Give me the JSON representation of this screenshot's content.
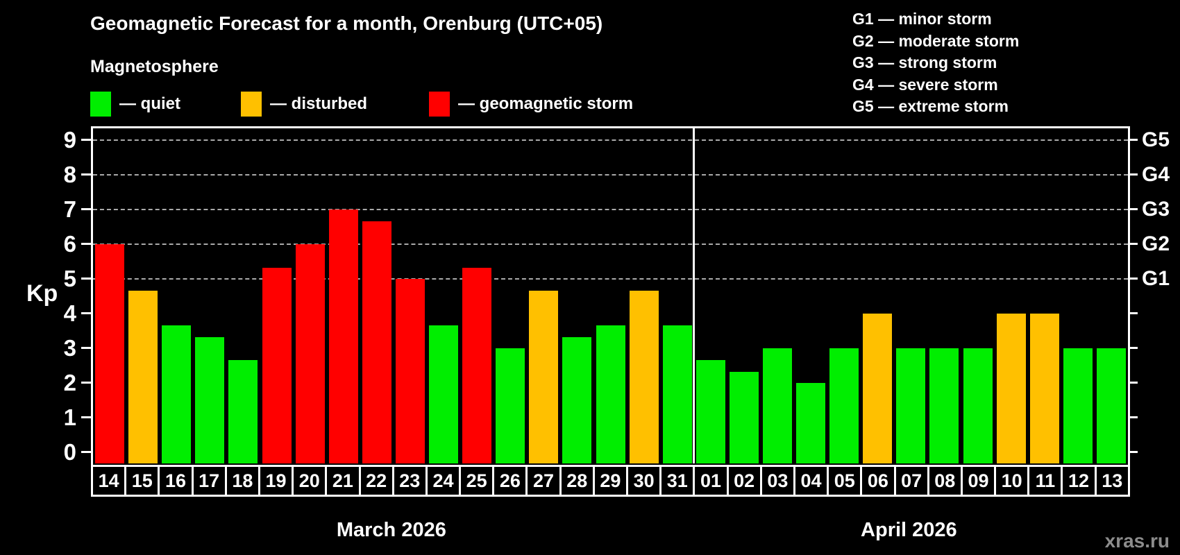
{
  "header": {
    "title": "Geomagnetic Forecast for a month, Orenburg (UTC+05)"
  },
  "legend": {
    "title": "Magnetosphere",
    "items": [
      {
        "key": "quiet",
        "label": "— quiet",
        "color": "#00ee00"
      },
      {
        "key": "disturbed",
        "label": "— disturbed",
        "color": "#ffc000"
      },
      {
        "key": "storm",
        "label": "— geomagnetic storm",
        "color": "#ff0000"
      }
    ]
  },
  "storm_scale_legend": {
    "items": [
      "G1 — minor storm",
      "G2 — moderate storm",
      "G3 — strong storm",
      "G4 — severe storm",
      "G5 — extreme storm"
    ]
  },
  "watermark": "xras.ru",
  "colors": {
    "background": "#000000",
    "frame": "#ffffff",
    "grid": "#aaaaaa",
    "text": "#ffffff",
    "watermark": "#8c8c8c"
  },
  "chart_data": {
    "type": "bar",
    "title": "Geomagnetic Forecast for a month, Orenburg (UTC+05)",
    "ylabel": "Kp",
    "ylim": [
      0,
      9
    ],
    "yticks": [
      0,
      1,
      2,
      3,
      4,
      5,
      6,
      7,
      8,
      9
    ],
    "gridlines_at": [
      5,
      6,
      7,
      8,
      9
    ],
    "grid_style": "dashed horizontal at storm levels only",
    "legend_position": "top",
    "right_axis": {
      "labels": [
        "G1",
        "G2",
        "G3",
        "G4",
        "G5"
      ],
      "values": [
        5,
        6,
        7,
        8,
        9
      ]
    },
    "status_colors": {
      "quiet": "#00ee00",
      "disturbed": "#ffc000",
      "storm": "#ff0000"
    },
    "months": [
      {
        "label": "March 2026",
        "days": [
          "14",
          "15",
          "16",
          "17",
          "18",
          "19",
          "20",
          "21",
          "22",
          "23",
          "24",
          "25",
          "26",
          "27",
          "28",
          "29",
          "30",
          "31"
        ],
        "values": [
          6.0,
          4.67,
          3.67,
          3.33,
          2.67,
          5.33,
          6.0,
          7.0,
          6.67,
          5.0,
          3.67,
          5.33,
          3.0,
          4.67,
          3.33,
          3.67,
          4.67,
          3.67
        ],
        "statuses": [
          "storm",
          "disturbed",
          "quiet",
          "quiet",
          "quiet",
          "storm",
          "storm",
          "storm",
          "storm",
          "storm",
          "quiet",
          "storm",
          "quiet",
          "disturbed",
          "quiet",
          "quiet",
          "disturbed",
          "quiet"
        ]
      },
      {
        "label": "April 2026",
        "days": [
          "01",
          "02",
          "03",
          "04",
          "05",
          "06",
          "07",
          "08",
          "09",
          "10",
          "11",
          "12",
          "13"
        ],
        "values": [
          2.67,
          2.33,
          3.0,
          2.0,
          3.0,
          4.0,
          3.0,
          3.0,
          3.0,
          4.0,
          4.0,
          3.0,
          3.0
        ],
        "statuses": [
          "quiet",
          "quiet",
          "quiet",
          "quiet",
          "quiet",
          "disturbed",
          "quiet",
          "quiet",
          "quiet",
          "disturbed",
          "disturbed",
          "quiet",
          "quiet"
        ]
      }
    ]
  }
}
